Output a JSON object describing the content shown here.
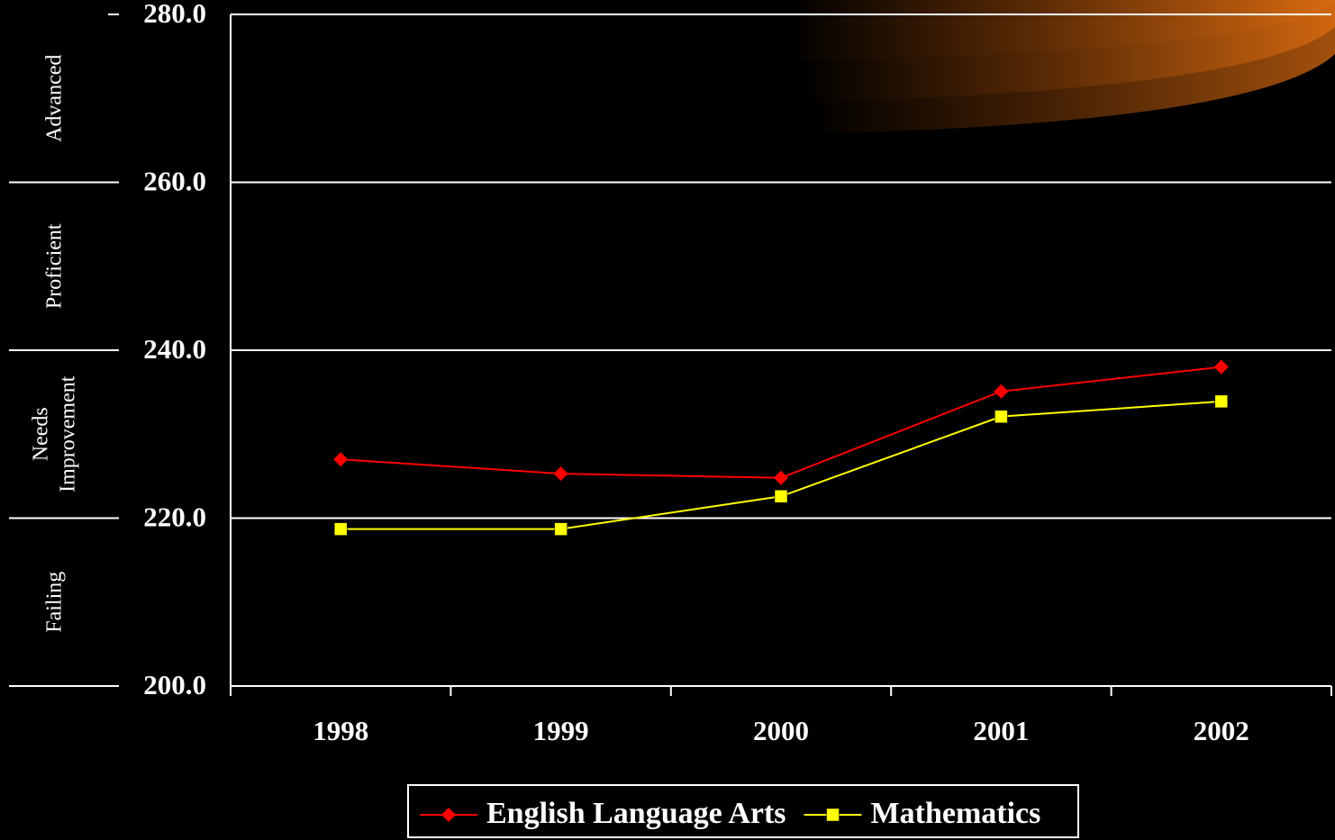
{
  "chart_data": {
    "type": "line",
    "categories": [
      "1998",
      "1999",
      "2000",
      "2001",
      "2002"
    ],
    "series": [
      {
        "name": "English Language Arts",
        "color": "#ff0000",
        "marker": "diamond",
        "values": [
          227.0,
          225.3,
          224.8,
          235.1,
          238.0
        ]
      },
      {
        "name": "Mathematics",
        "color": "#ffff00",
        "marker": "square",
        "values": [
          218.7,
          218.7,
          222.6,
          232.1,
          233.9
        ]
      }
    ],
    "ylim": [
      200,
      280
    ],
    "yticks": [
      {
        "value": 200,
        "label": "200.0"
      },
      {
        "value": 220,
        "label": "220.0"
      },
      {
        "value": 240,
        "label": "240.0"
      },
      {
        "value": 260,
        "label": "260.0"
      },
      {
        "value": 280,
        "label": "280.0"
      }
    ],
    "grid": true,
    "bands": [
      {
        "lines": [
          "Failing"
        ],
        "ylim": [
          200,
          220
        ]
      },
      {
        "lines": [
          "Needs",
          "Improvement"
        ],
        "ylim": [
          220,
          240
        ]
      },
      {
        "lines": [
          "Proficient"
        ],
        "ylim": [
          240,
          260
        ]
      },
      {
        "lines": [
          "Advanced"
        ],
        "ylim": [
          260,
          280
        ]
      }
    ],
    "legend": "bottom"
  }
}
